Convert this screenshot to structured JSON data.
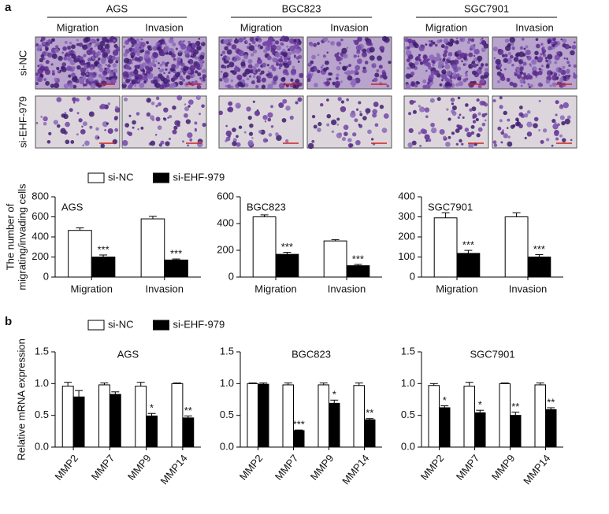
{
  "figure": {
    "panel_labels": [
      "a",
      "b"
    ],
    "cell_lines": [
      "AGS",
      "BGC823",
      "SGC7901"
    ],
    "assays": [
      [
        "Migration",
        "Invasion"
      ],
      [
        "Migration",
        "Invasion"
      ],
      [
        "Migration",
        "Invasion"
      ]
    ],
    "row_labels": [
      "si-NC",
      "si-EHF-979"
    ]
  },
  "chart_data": [
    {
      "type": "bar",
      "title": "AGS",
      "ylabel": [
        "The number of",
        "migrating/invading cells"
      ],
      "legend": true,
      "categories": [
        "Migration",
        "Invasion"
      ],
      "ylim": [
        0,
        800
      ],
      "yticks": [
        0,
        200,
        400,
        600,
        800
      ],
      "series": [
        {
          "name": "si-NC",
          "color": "#ffffff",
          "values": [
            465,
            580
          ],
          "errors": [
            25,
            25
          ]
        },
        {
          "name": "si-EHF-979",
          "color": "#000000",
          "values": [
            200,
            170
          ],
          "errors": [
            20,
            10
          ],
          "annotations": [
            "***",
            "***"
          ]
        }
      ]
    },
    {
      "type": "bar",
      "title": "BGC823",
      "categories": [
        "Migration",
        "Invasion"
      ],
      "ylim": [
        0,
        600
      ],
      "yticks": [
        0,
        200,
        400,
        600
      ],
      "series": [
        {
          "name": "si-NC",
          "color": "#ffffff",
          "values": [
            450,
            270
          ],
          "errors": [
            15,
            10
          ]
        },
        {
          "name": "si-EHF-979",
          "color": "#000000",
          "values": [
            170,
            85
          ],
          "errors": [
            15,
            10
          ],
          "annotations": [
            "***",
            "***"
          ]
        }
      ]
    },
    {
      "type": "bar",
      "title": "SGC7901",
      "categories": [
        "Migration",
        "Invasion"
      ],
      "ylim": [
        0,
        400
      ],
      "yticks": [
        0,
        100,
        200,
        300,
        400
      ],
      "series": [
        {
          "name": "si-NC",
          "color": "#ffffff",
          "values": [
            295,
            300
          ],
          "errors": [
            25,
            20
          ]
        },
        {
          "name": "si-EHF-979",
          "color": "#000000",
          "values": [
            118,
            100
          ],
          "errors": [
            15,
            12
          ],
          "annotations": [
            "***",
            "***"
          ]
        }
      ]
    },
    {
      "type": "bar",
      "title": "AGS",
      "ylabel": [
        "Relative mRNA expression"
      ],
      "legend": true,
      "categories": [
        "MMP2",
        "MMP7",
        "MMP9",
        "MMP14"
      ],
      "ylim": [
        0,
        1.5
      ],
      "yticks": [
        {
          "value": 0,
          "label": "0.0"
        },
        {
          "value": 0.5,
          "label": "0.5"
        },
        {
          "value": 1,
          "label": "1.0"
        },
        {
          "value": 1.5,
          "label": "1.5"
        }
      ],
      "series": [
        {
          "name": "si-NC",
          "color": "#ffffff",
          "values": [
            0.96,
            0.98,
            0.96,
            1.0
          ],
          "errors": [
            0.06,
            0.03,
            0.06,
            0.01
          ]
        },
        {
          "name": "si-EHF-979",
          "color": "#000000",
          "values": [
            0.79,
            0.83,
            0.49,
            0.46
          ],
          "errors": [
            0.1,
            0.04,
            0.04,
            0.03
          ],
          "annotations": [
            null,
            null,
            "*",
            "**"
          ]
        }
      ]
    },
    {
      "type": "bar",
      "title": "BGC823",
      "categories": [
        "MMP2",
        "MMP7",
        "MMP9",
        "MMP14"
      ],
      "ylim": [
        0,
        1.5
      ],
      "yticks": [
        {
          "value": 0,
          "label": "0.0"
        },
        {
          "value": 0.5,
          "label": "0.5"
        },
        {
          "value": 1,
          "label": "1.0"
        },
        {
          "value": 1.5,
          "label": "1.5"
        }
      ],
      "series": [
        {
          "name": "si-NC",
          "color": "#ffffff",
          "values": [
            1.0,
            0.98,
            0.98,
            0.97
          ],
          "errors": [
            0.01,
            0.03,
            0.03,
            0.04
          ]
        },
        {
          "name": "si-EHF-979",
          "color": "#000000",
          "values": [
            0.99,
            0.26,
            0.69,
            0.43
          ],
          "errors": [
            0.02,
            0.01,
            0.05,
            0.02
          ],
          "annotations": [
            null,
            "***",
            "*",
            "**"
          ]
        }
      ]
    },
    {
      "type": "bar",
      "title": "SGC7901",
      "categories": [
        "MMP2",
        "MMP7",
        "MMP9",
        "MMP14"
      ],
      "ylim": [
        0,
        1.5
      ],
      "yticks": [
        {
          "value": 0,
          "label": "0.0"
        },
        {
          "value": 0.5,
          "label": "0.5"
        },
        {
          "value": 1,
          "label": "1.0"
        },
        {
          "value": 1.5,
          "label": "1.5"
        }
      ],
      "series": [
        {
          "name": "si-NC",
          "color": "#ffffff",
          "values": [
            0.97,
            0.96,
            1.0,
            0.98
          ],
          "errors": [
            0.03,
            0.06,
            0.01,
            0.03
          ]
        },
        {
          "name": "si-EHF-979",
          "color": "#000000",
          "values": [
            0.62,
            0.54,
            0.5,
            0.59
          ],
          "errors": [
            0.03,
            0.04,
            0.05,
            0.03
          ],
          "annotations": [
            "*",
            "*",
            "**",
            "**"
          ]
        }
      ]
    }
  ]
}
